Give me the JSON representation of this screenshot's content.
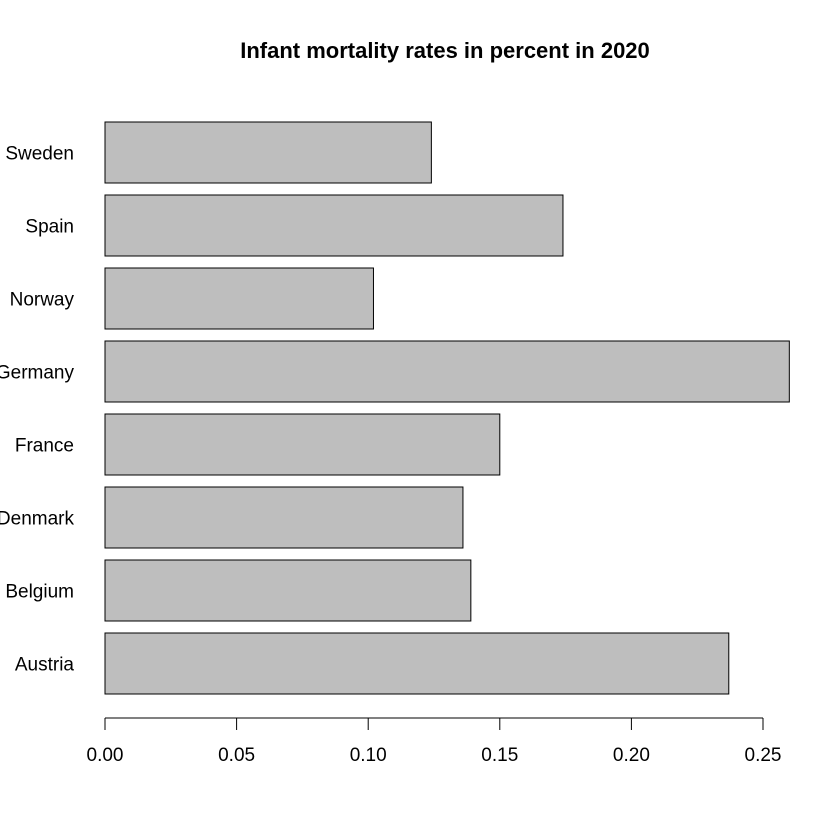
{
  "chart_data": {
    "type": "bar",
    "orientation": "horizontal",
    "title": "Infant mortality rates in percent in 2020",
    "xlabel": "",
    "ylabel": "",
    "categories": [
      "Austria",
      "Belgium",
      "Denmark",
      "France",
      "Germany",
      "Norway",
      "Spain",
      "Sweden"
    ],
    "values": [
      0.237,
      0.139,
      0.136,
      0.15,
      0.26,
      0.102,
      0.174,
      0.124
    ],
    "xlim": [
      0,
      0.25
    ],
    "ticks": [
      0.0,
      0.05,
      0.1,
      0.15,
      0.2,
      0.25
    ],
    "tick_labels": [
      "0.00",
      "0.05",
      "0.10",
      "0.15",
      "0.20",
      "0.25"
    ],
    "bar_color": "#bebebe",
    "grid": false,
    "legend": "none"
  }
}
